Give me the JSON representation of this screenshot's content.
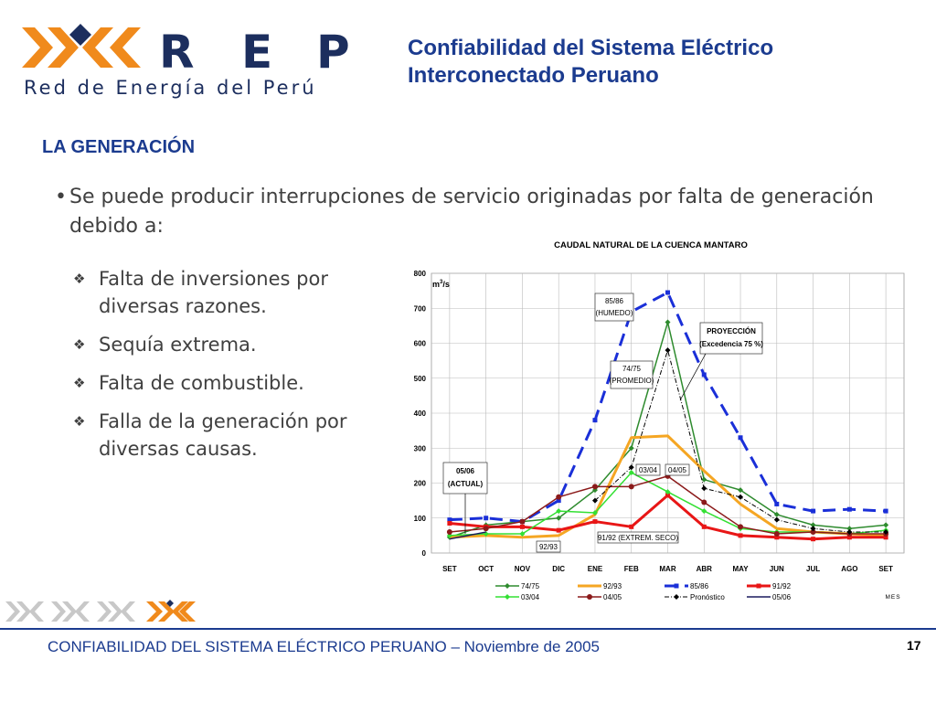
{
  "header": {
    "logo_letters": [
      "R",
      "E",
      "P"
    ],
    "logo_text": "Red de Energía del Perú",
    "title_line1": "Confiabilidad del Sistema Eléctrico",
    "title_line2": "Interconectado Peruano"
  },
  "section_title": "LA GENERACIÓN",
  "bullet": {
    "marker": "•",
    "text": "Se puede producir interrupciones de servicio originadas por falta de generación debido a:"
  },
  "sub_items": [
    "Falta de inversiones por diversas razones.",
    "Sequía extrema.",
    "Falta de combustible.",
    "Falla de la generación por diversas causas."
  ],
  "footer": {
    "text": "CONFIABILIDAD DEL SISTEMA ELÉCTRICO PERUANO – Noviembre de 2005",
    "page": "17"
  },
  "chart_data": {
    "type": "line",
    "title": "CAUDAL NATURAL DE LA CUENCA MANTARO",
    "ylabel_main": "m",
    "ylabel_sup": "3",
    "ylabel_rest": "/s",
    "xlabel": "MES",
    "ylim": [
      0,
      800
    ],
    "yticks": [
      0,
      100,
      200,
      300,
      400,
      500,
      600,
      700,
      800
    ],
    "categories": [
      "SET",
      "OCT",
      "NOV",
      "DIC",
      "ENE",
      "FEB",
      "MAR",
      "ABR",
      "MAY",
      "JUN",
      "JUL",
      "AGO",
      "SET"
    ],
    "grid": true,
    "legend_position": "bottom",
    "series": [
      {
        "name": "74/75",
        "color": "#2e8b2e",
        "dash": "",
        "marker": "diamond",
        "width": 1.5,
        "values": [
          45,
          80,
          90,
          100,
          180,
          300,
          660,
          210,
          180,
          110,
          80,
          70,
          80
        ]
      },
      {
        "name": "92/93",
        "color": "#f5a623",
        "dash": "",
        "marker": "none",
        "width": 3,
        "values": [
          45,
          50,
          45,
          50,
          110,
          330,
          335,
          235,
          140,
          70,
          60,
          55,
          50
        ]
      },
      {
        "name": "85/86",
        "color": "#1a2fd8",
        "dash": "14,8",
        "marker": "square",
        "width": 3,
        "values": [
          95,
          100,
          90,
          150,
          380,
          690,
          745,
          510,
          330,
          140,
          120,
          125,
          120
        ]
      },
      {
        "name": "91/92",
        "color": "#e81616",
        "dash": "",
        "marker": "square",
        "width": 3,
        "values": [
          85,
          75,
          75,
          65,
          90,
          75,
          165,
          75,
          50,
          45,
          40,
          45,
          45
        ]
      },
      {
        "name": "03/04",
        "color": "#33e033",
        "dash": "",
        "marker": "diamond",
        "width": 1.5,
        "values": [
          50,
          55,
          55,
          120,
          115,
          230,
          175,
          120,
          70,
          60,
          60,
          55,
          65
        ]
      },
      {
        "name": "04/05",
        "color": "#8b1a1a",
        "dash": "",
        "marker": "circle",
        "width": 1.5,
        "values": [
          60,
          70,
          90,
          160,
          190,
          190,
          220,
          145,
          75,
          55,
          60,
          55,
          55
        ]
      },
      {
        "name": "Pronóstico",
        "color": "#000000",
        "dash": "5,2,1,2",
        "marker": "diamond",
        "width": 1,
        "values": [
          null,
          null,
          null,
          null,
          150,
          245,
          580,
          185,
          160,
          95,
          70,
          60,
          60
        ]
      },
      {
        "name": "05/06",
        "color": "#1a1a5e",
        "dash": "",
        "marker": "none",
        "width": 1.5,
        "values": [
          40,
          60,
          null,
          null,
          null,
          null,
          null,
          null,
          null,
          null,
          null,
          null,
          null
        ]
      }
    ],
    "annotations": [
      {
        "lines": [
          "85/86",
          "(HUMEDO)"
        ]
      },
      {
        "lines": [
          "PROYECCIÓN",
          "(Excedencia 75 %)"
        ]
      },
      {
        "lines": [
          "74/75",
          "(PROMEDIO)"
        ]
      },
      {
        "lines": [
          "05/06",
          "(ACTUAL)"
        ]
      },
      {
        "lines": [
          "03/04"
        ]
      },
      {
        "lines": [
          "04/05"
        ]
      },
      {
        "lines": [
          "91/92 (EXTREM. SECO)"
        ]
      },
      {
        "lines": [
          "92/93"
        ]
      }
    ]
  },
  "colors": {
    "title_blue": "#1b3b8f",
    "logo_orange": "#f08a1c",
    "logo_navy": "#1c2e5e",
    "strip_gray": "#c8c8c8"
  }
}
